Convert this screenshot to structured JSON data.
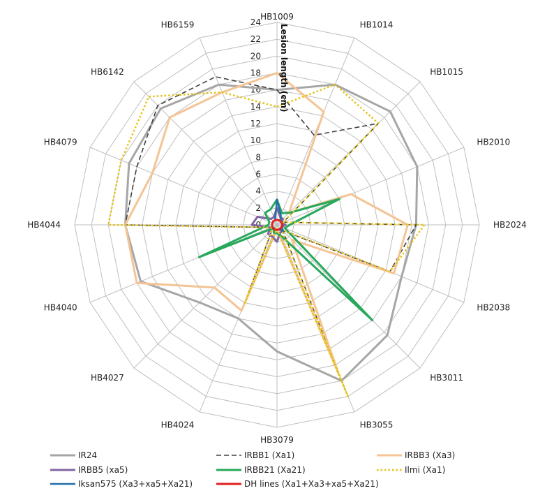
{
  "chart_data": {
    "type": "radar",
    "axis_title": "Lesion length (cm)",
    "rlim": [
      0,
      24
    ],
    "ticks": [
      "0",
      "2",
      "4",
      "6",
      "8",
      "10",
      "12",
      "14",
      "16",
      "18",
      "20",
      "22",
      "24"
    ],
    "categories": [
      "HB1009",
      "HB1014",
      "HB1015",
      "HB2010",
      "HB2024",
      "HB2038",
      "HB3011",
      "HB3055",
      "HB3079",
      "HB4024",
      "HB4027",
      "HB4040",
      "HB4044",
      "HB4079",
      "HB6142",
      "HB6159"
    ],
    "grid": true,
    "legend_position": "bottom",
    "series": [
      {
        "name": "IR24",
        "color": "#A6A6A6",
        "style": "solid",
        "width": 3,
        "values": [
          16,
          18,
          19,
          18,
          16.5,
          16,
          18.5,
          20,
          15,
          12,
          13,
          17.5,
          18,
          19,
          19.5,
          18
        ]
      },
      {
        "name": "IRBB1 (Xa1)",
        "color": "#404040",
        "style": "dashed",
        "width": 1.6,
        "values": [
          16,
          11.5,
          17,
          0.8,
          16.5,
          14.5,
          1,
          18.5,
          0.5,
          10,
          0.8,
          0.8,
          18,
          18,
          20,
          19
        ]
      },
      {
        "name": "IRBB3 (Xa3)",
        "color": "#F4C494",
        "style": "solid",
        "width": 3,
        "values": [
          18,
          14.5,
          2,
          9.5,
          15.5,
          15,
          2.5,
          19,
          0.5,
          11,
          10.5,
          18,
          18,
          16,
          18,
          17
        ]
      },
      {
        "name": "IRBB5 (xa5)",
        "color": "#8064A2",
        "style": "solid",
        "width": 3,
        "values": [
          2,
          1,
          1,
          0.6,
          1,
          0.6,
          1,
          1,
          2,
          1.5,
          1.5,
          0.8,
          3,
          2.5,
          1,
          1
        ]
      },
      {
        "name": "IRBB21 (Xa21)",
        "color": "#27A85A",
        "style": "solid",
        "width": 3,
        "values": [
          3,
          1.5,
          2,
          8,
          1.5,
          1,
          16,
          1.5,
          1,
          1,
          0.5,
          10,
          1,
          1,
          2,
          2
        ]
      },
      {
        "name": "Ilmi (Xa1)",
        "color": "#E5C213",
        "style": "dotted",
        "width": 2.5,
        "values": [
          14,
          18,
          17,
          0.8,
          17.5,
          14.5,
          0.8,
          22,
          0.5,
          10,
          0.8,
          0.8,
          20,
          20,
          21.5,
          17
        ]
      },
      {
        "name": "Iksan575 (Xa3+xa5+Xa21)",
        "color": "#1F6FA8",
        "style": "solid",
        "width": 2.5,
        "values": [
          3,
          1.2,
          0.6,
          0.6,
          0.6,
          0.6,
          1,
          0.6,
          0.6,
          0.6,
          0.6,
          0.6,
          0.6,
          0.6,
          0.6,
          0.6
        ]
      },
      {
        "name": "DH lines (Xa1+Xa3+xa5+Xa21)",
        "color": "#E02020",
        "style": "solid",
        "width": 3,
        "values": [
          0.6,
          0.6,
          0.6,
          0.6,
          0.6,
          0.6,
          0.6,
          0.6,
          0.6,
          0.6,
          0.6,
          0.6,
          0.6,
          0.6,
          0.6,
          0.6
        ]
      }
    ]
  }
}
